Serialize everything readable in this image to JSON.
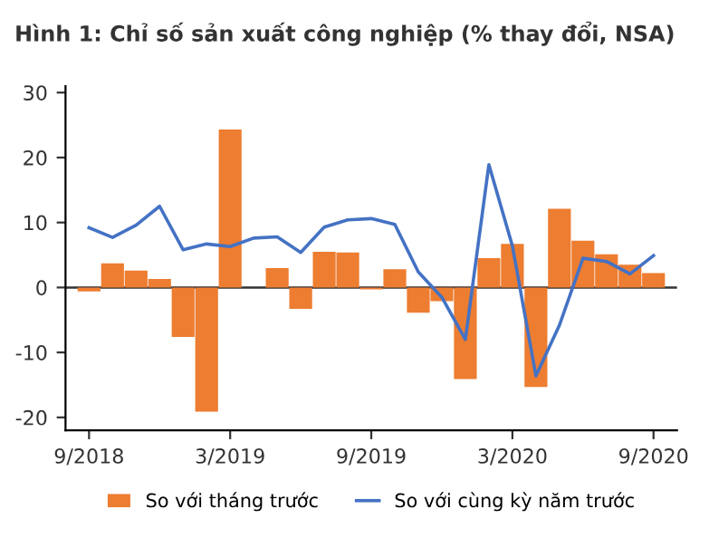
{
  "chart_data": {
    "type": "bar",
    "title": "Hình 1: Chỉ số sản xuất công nghiệp (% thay đổi, NSA)",
    "x": [
      "2018-09",
      "2018-10",
      "2018-11",
      "2018-12",
      "2019-01",
      "2019-02",
      "2019-03",
      "2019-04",
      "2019-05",
      "2019-06",
      "2019-07",
      "2019-08",
      "2019-09",
      "2019-10",
      "2019-11",
      "2019-12",
      "2020-01",
      "2020-02",
      "2020-03",
      "2020-04",
      "2020-05",
      "2020-06",
      "2020-07",
      "2020-08",
      "2020-09"
    ],
    "series": [
      {
        "name": "So với tháng trước",
        "color": "#ed7d31",
        "values": [
          -0.6,
          3.7,
          2.6,
          1.3,
          -7.6,
          -19.1,
          24.3,
          null,
          3.0,
          -3.3,
          5.5,
          5.4,
          -0.3,
          2.8,
          -3.9,
          -2.1,
          -14.1,
          4.5,
          6.7,
          -15.3,
          12.1,
          7.2,
          5.1,
          3.5,
          2.2
        ]
      },
      {
        "name": "So với cùng kỳ năm trước",
        "type": "line",
        "color": "#4472c4",
        "values": [
          9.2,
          7.7,
          9.6,
          12.5,
          5.8,
          6.7,
          6.3,
          7.6,
          7.8,
          5.4,
          9.3,
          10.4,
          10.6,
          9.7,
          2.4,
          -1.5,
          -8.0,
          18.9,
          6.4,
          -13.6,
          -5.8,
          4.5,
          4.0,
          2.1,
          4.9
        ]
      }
    ],
    "xlim": [
      "2018-08",
      "2020-10"
    ],
    "xticks": [
      {
        "value": "2018-09",
        "label": "9/2018"
      },
      {
        "value": "2019-03",
        "label": "3/2019"
      },
      {
        "value": "2019-09",
        "label": "9/2019"
      },
      {
        "value": "2020-03",
        "label": "3/2020"
      },
      {
        "value": "2020-09",
        "label": "9/2020"
      }
    ],
    "ylim": [
      -22,
      31
    ],
    "yticks": [
      -20,
      -10,
      0,
      10,
      20,
      30
    ],
    "ref_lines": [
      {
        "axis": "y",
        "value": 0,
        "color": "#333333"
      }
    ],
    "grid": false,
    "legend": "bottom"
  }
}
